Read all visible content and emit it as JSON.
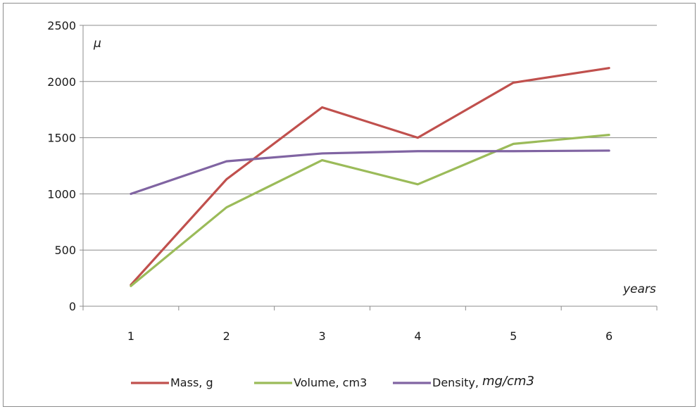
{
  "chart_data": {
    "type": "line",
    "x": [
      1,
      2,
      3,
      4,
      5,
      6
    ],
    "series": [
      {
        "name": "Mass, g",
        "color": "#c0504d",
        "values": [
          190,
          1130,
          1770,
          1500,
          1990,
          2120
        ]
      },
      {
        "name": "Volume, cm3",
        "color": "#9bbb59",
        "values": [
          180,
          880,
          1300,
          1085,
          1445,
          1525
        ]
      },
      {
        "name": "Density, mg/cm3",
        "color": "#8064a2",
        "values": [
          1000,
          1290,
          1360,
          1380,
          1380,
          1385
        ]
      }
    ],
    "ylim": [
      0,
      2500
    ],
    "yticks": [
      0,
      500,
      1000,
      1500,
      2000,
      2500
    ],
    "ylabel": "μ",
    "xlabel": "years",
    "grid": "horizontal",
    "legend": {
      "placement": "bottom",
      "entries": [
        {
          "prefix": "Mass, g",
          "suffix": ""
        },
        {
          "prefix": "Volume, cm3",
          "suffix": ""
        },
        {
          "prefix": "Density, ",
          "suffix": "mg/cm3"
        }
      ]
    }
  }
}
